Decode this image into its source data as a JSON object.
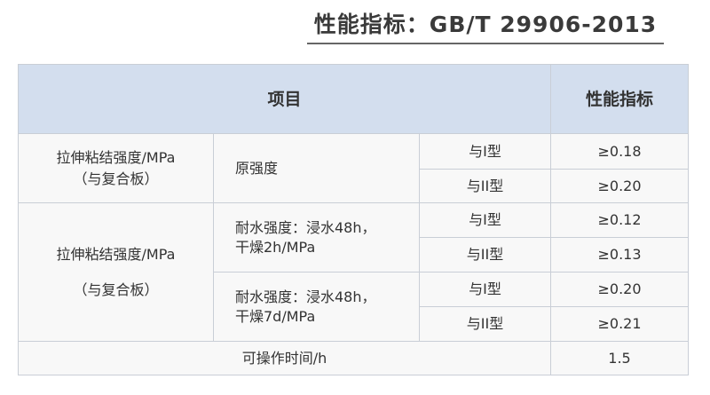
{
  "title": "性能指标：GB/T 29906-2013",
  "header": {
    "item": "项目",
    "spec": "性能指标"
  },
  "groups": [
    {
      "name_line1": "拉伸粘结强度/MPa",
      "name_line2": "（与复合板）",
      "subs": [
        {
          "label": "原强度",
          "rows": [
            {
              "type": "与I型",
              "value": "≥0.18"
            },
            {
              "type": "与II型",
              "value": "≥0.20"
            }
          ]
        }
      ]
    },
    {
      "name_line1": "拉伸粘结强度/MPa",
      "name_line2": "（与复合板）",
      "subs": [
        {
          "label_line1": "耐水强度：浸水48h，",
          "label_line2": "干燥2h/MPa",
          "rows": [
            {
              "type": "与I型",
              "value": "≥0.12"
            },
            {
              "type": "与II型",
              "value": "≥0.13"
            }
          ]
        },
        {
          "label_line1": "耐水强度：浸水48h，",
          "label_line2": "干燥7d/MPa",
          "rows": [
            {
              "type": "与I型",
              "value": "≥0.20"
            },
            {
              "type": "与II型",
              "value": "≥0.21"
            }
          ]
        }
      ]
    }
  ],
  "footer": {
    "label": "可操作时间/h",
    "value": "1.5"
  }
}
